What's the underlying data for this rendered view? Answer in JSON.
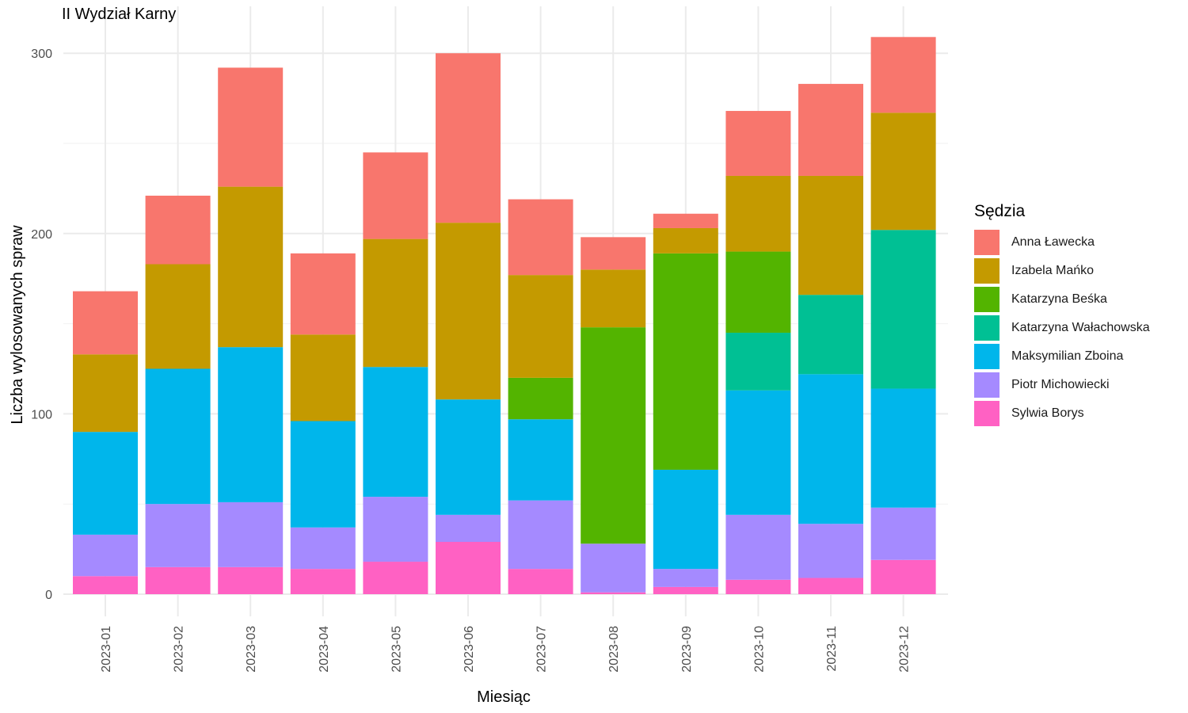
{
  "chart_data": {
    "type": "bar",
    "stacked": true,
    "title": "II Wydział Karny",
    "xlabel": "Miesiąc",
    "ylabel": "Liczba wylosowanych spraw",
    "categories": [
      "2023-01",
      "2023-02",
      "2023-03",
      "2023-04",
      "2023-05",
      "2023-06",
      "2023-07",
      "2023-08",
      "2023-09",
      "2023-10",
      "2023-11",
      "2023-12"
    ],
    "ylim": [
      0,
      310
    ],
    "yticks": [
      0,
      100,
      200,
      300
    ],
    "grid": true,
    "legend_title": "Sędzia",
    "legend_position": "right",
    "series": [
      {
        "name": "Sylwia Borys",
        "color": "#FF61C3",
        "values": [
          10,
          15,
          15,
          14,
          18,
          29,
          14,
          1,
          4,
          8,
          9,
          19
        ]
      },
      {
        "name": "Piotr Michowiecki",
        "color": "#A58AFF",
        "values": [
          23,
          35,
          36,
          23,
          36,
          15,
          38,
          27,
          10,
          36,
          30,
          29
        ]
      },
      {
        "name": "Maksymilian Zboina",
        "color": "#00B6EB",
        "values": [
          57,
          75,
          86,
          59,
          72,
          64,
          45,
          0,
          55,
          69,
          83,
          66
        ]
      },
      {
        "name": "Katarzyna Wałachowska",
        "color": "#00C094",
        "values": [
          0,
          0,
          0,
          0,
          0,
          0,
          0,
          0,
          0,
          32,
          44,
          88
        ]
      },
      {
        "name": "Katarzyna Beśka",
        "color": "#53B400",
        "values": [
          0,
          0,
          0,
          0,
          0,
          0,
          23,
          120,
          120,
          45,
          0,
          0
        ]
      },
      {
        "name": "Izabela Mańko",
        "color": "#C49A00",
        "values": [
          43,
          58,
          89,
          48,
          71,
          98,
          57,
          32,
          14,
          42,
          66,
          65
        ]
      },
      {
        "name": "Anna Ławecka",
        "color": "#F8766D",
        "values": [
          35,
          38,
          66,
          45,
          48,
          94,
          42,
          18,
          8,
          36,
          51,
          42
        ]
      }
    ],
    "legend_order": [
      "Anna Ławecka",
      "Izabela Mańko",
      "Katarzyna Beśka",
      "Katarzyna Wałachowska",
      "Maksymilian Zboina",
      "Piotr Michowiecki",
      "Sylwia Borys"
    ]
  }
}
